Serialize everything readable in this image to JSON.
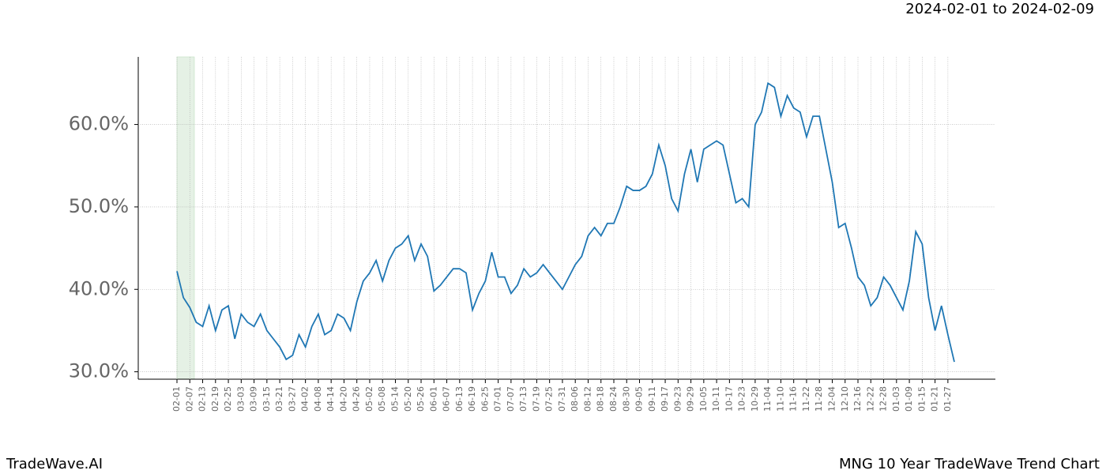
{
  "chart_data": {
    "type": "line",
    "title": "MNG 10 Year TradeWave Trend Chart",
    "date_range": "2024-02-01 to 2024-02-09",
    "brand": "TradeWave.AI",
    "color": "#1f77b4",
    "grid": true,
    "categories": [
      "02-01",
      null,
      "02-07",
      null,
      "02-13",
      null,
      "02-19",
      null,
      "02-25",
      null,
      "03-03",
      null,
      "03-09",
      null,
      "03-15",
      null,
      "03-21",
      null,
      "03-27",
      null,
      "04-02",
      null,
      "04-08",
      null,
      "04-14",
      null,
      "04-20",
      null,
      "04-26",
      null,
      "05-02",
      null,
      "05-08",
      null,
      "05-14",
      null,
      "05-20",
      null,
      "05-26",
      null,
      "06-01",
      null,
      "06-07",
      null,
      "06-13",
      null,
      "06-19",
      null,
      "06-25",
      null,
      "07-01",
      null,
      "07-07",
      null,
      "07-13",
      null,
      "07-19",
      null,
      "07-25",
      null,
      "07-31",
      null,
      "08-06",
      null,
      "08-12",
      null,
      "08-18",
      null,
      "08-24",
      null,
      "08-30",
      null,
      "09-05",
      null,
      "09-11",
      null,
      "09-17",
      null,
      "09-23",
      null,
      "09-29",
      null,
      "10-05",
      null,
      "10-11",
      null,
      "10-17",
      null,
      "10-23",
      null,
      "10-29",
      null,
      "11-04",
      null,
      "11-10",
      null,
      "11-16",
      null,
      "11-22",
      null,
      "11-28",
      null,
      "12-04",
      null,
      "12-10",
      null,
      "12-16",
      null,
      "12-22",
      null,
      "12-28",
      null,
      "01-03",
      null,
      "01-09",
      null,
      "01-15",
      null,
      "01-21",
      null,
      "01-27",
      null
    ],
    "values": [
      42.2,
      39.0,
      37.8,
      36.0,
      35.5,
      38.0,
      35.0,
      37.5,
      38.0,
      34.0,
      37.0,
      36.0,
      35.5,
      37.0,
      35.0,
      34.0,
      33.0,
      31.5,
      32.0,
      34.5,
      33.0,
      35.5,
      37.0,
      34.5,
      35.0,
      37.0,
      36.5,
      35.0,
      38.5,
      41.0,
      42.0,
      43.5,
      41.0,
      43.5,
      45.0,
      45.5,
      46.5,
      43.5,
      45.5,
      44.0,
      39.8,
      40.5,
      41.5,
      42.5,
      42.5,
      42.0,
      37.5,
      39.5,
      41.0,
      44.5,
      41.5,
      41.5,
      39.5,
      40.5,
      42.5,
      41.5,
      42.0,
      43.0,
      42.0,
      41.0,
      40.0,
      41.5,
      43.0,
      44.0,
      46.5,
      47.5,
      46.5,
      48.0,
      48.0,
      50.0,
      52.5,
      52.0,
      52.0,
      52.5,
      54.0,
      57.5,
      55.0,
      51.0,
      49.5,
      54.0,
      57.0,
      53.0,
      57.0,
      57.5,
      58.0,
      57.5,
      54.0,
      50.5,
      51.0,
      50.0,
      60.0,
      61.5,
      65.0,
      64.5,
      61.0,
      63.5,
      62.0,
      61.5,
      58.5,
      61.0,
      61.0,
      57.0,
      53.0,
      47.5,
      48.0,
      45.0,
      41.5,
      40.5,
      38.0,
      39.0,
      41.5,
      40.5,
      39.0,
      37.5,
      41.0,
      47.0,
      45.5,
      39.0,
      35.0,
      38.0,
      34.5,
      31.2
    ],
    "ylim": [
      29.1,
      68.2
    ],
    "yticks": [
      {
        "value": 30,
        "label": "30.0%"
      },
      {
        "value": 40,
        "label": "40.0%"
      },
      {
        "value": 50,
        "label": "50.0%"
      },
      {
        "value": 60,
        "label": "60.0%"
      }
    ]
  }
}
